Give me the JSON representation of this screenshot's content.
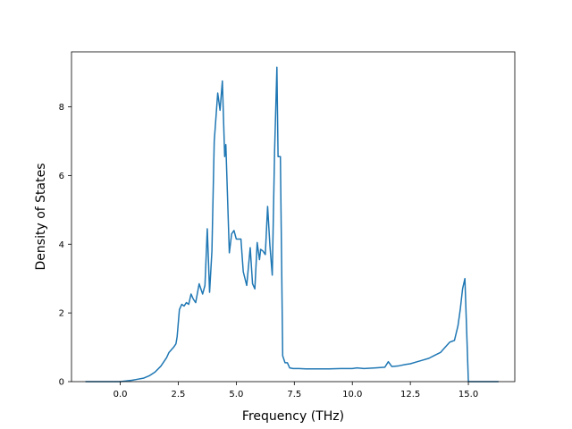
{
  "chart_data": {
    "type": "line",
    "title": "",
    "xlabel": "Frequency (THz)",
    "ylabel": "Density of States",
    "xlim": [
      -2.1,
      17.0
    ],
    "ylim": [
      0,
      9.6
    ],
    "grid": false,
    "legend": "none",
    "xticks": [
      {
        "value": 0.0,
        "label": "0.0"
      },
      {
        "value": 2.5,
        "label": "2.5"
      },
      {
        "value": 5.0,
        "label": "5.0"
      },
      {
        "value": 7.5,
        "label": "7.5"
      },
      {
        "value": 10.0,
        "label": "10.0"
      },
      {
        "value": 12.5,
        "label": "12.5"
      },
      {
        "value": 15.0,
        "label": "15.0"
      }
    ],
    "yticks": [
      {
        "value": 0,
        "label": "0"
      },
      {
        "value": 2,
        "label": "2"
      },
      {
        "value": 4,
        "label": "4"
      },
      {
        "value": 6,
        "label": "6"
      },
      {
        "value": 8,
        "label": "8"
      }
    ],
    "series": [
      {
        "color": "#1f77b4",
        "x": [
          -1.5,
          -1.0,
          -0.5,
          0.0,
          0.25,
          0.5,
          0.75,
          1.0,
          1.25,
          1.5,
          1.75,
          2.0,
          2.1,
          2.3,
          2.4,
          2.45,
          2.55,
          2.65,
          2.75,
          2.85,
          2.95,
          3.05,
          3.15,
          3.25,
          3.4,
          3.55,
          3.65,
          3.75,
          3.85,
          3.95,
          4.05,
          4.2,
          4.3,
          4.4,
          4.5,
          4.55,
          4.7,
          4.8,
          4.9,
          5.0,
          5.1,
          5.2,
          5.3,
          5.45,
          5.6,
          5.7,
          5.8,
          5.9,
          6.0,
          6.05,
          6.15,
          6.25,
          6.35,
          6.45,
          6.55,
          6.65,
          6.75,
          6.8,
          6.9,
          7.0,
          7.1,
          7.2,
          7.3,
          7.45,
          7.7,
          8.0,
          8.5,
          9.0,
          9.5,
          10.0,
          10.2,
          10.5,
          11.0,
          11.4,
          11.55,
          11.7,
          12.0,
          12.3,
          12.5,
          12.8,
          13.0,
          13.3,
          13.5,
          13.8,
          14.0,
          14.2,
          14.4,
          14.55,
          14.65,
          14.75,
          14.85,
          15.0,
          15.5,
          16.0,
          16.3
        ],
        "y": [
          0.0,
          0.0,
          0.0,
          0.0,
          0.02,
          0.04,
          0.07,
          0.1,
          0.17,
          0.28,
          0.45,
          0.7,
          0.85,
          1.0,
          1.1,
          1.3,
          2.1,
          2.25,
          2.2,
          2.3,
          2.25,
          2.55,
          2.4,
          2.3,
          2.85,
          2.55,
          2.8,
          4.45,
          2.6,
          3.8,
          7.0,
          8.4,
          7.9,
          8.75,
          6.55,
          6.9,
          3.75,
          4.3,
          4.4,
          4.15,
          4.15,
          4.15,
          3.2,
          2.8,
          3.9,
          2.85,
          2.7,
          4.05,
          3.55,
          3.85,
          3.8,
          3.7,
          5.1,
          3.95,
          3.1,
          6.7,
          9.15,
          6.55,
          6.55,
          0.75,
          0.55,
          0.55,
          0.4,
          0.38,
          0.38,
          0.37,
          0.37,
          0.37,
          0.38,
          0.38,
          0.4,
          0.38,
          0.4,
          0.42,
          0.58,
          0.44,
          0.46,
          0.5,
          0.52,
          0.58,
          0.62,
          0.68,
          0.75,
          0.85,
          1.0,
          1.15,
          1.2,
          1.62,
          2.1,
          2.7,
          3.0,
          0.0,
          0.0,
          0.0,
          0.0
        ]
      }
    ]
  }
}
